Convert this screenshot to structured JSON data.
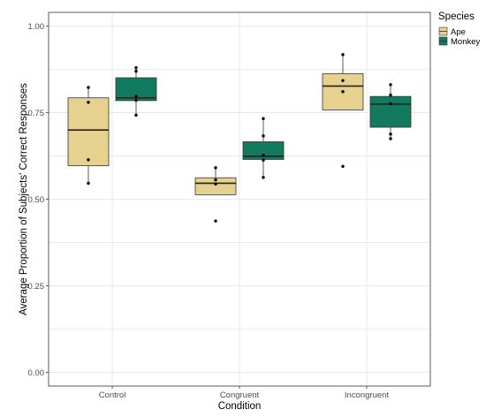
{
  "chart_data": {
    "type": "box",
    "xlabel": "Condition",
    "ylabel": "Average Proportion of Subjects' Correct Responses",
    "ylim": [
      -0.04,
      1.04
    ],
    "y_ticks": [
      0.0,
      0.25,
      0.5,
      0.75,
      1.0
    ],
    "y_tick_labels": [
      "0.00",
      "0.25",
      "0.50",
      "0.75",
      "1.00"
    ],
    "categories": [
      "Control",
      "Congruent",
      "Incongruent"
    ],
    "grid": true,
    "legend": {
      "title": "Species",
      "placement": "top-right"
    },
    "series": [
      {
        "name": "Ape",
        "color": "#e7d190",
        "boxes": [
          {
            "q1": 0.597,
            "median": 0.7,
            "q3": 0.793,
            "whisker_low": 0.546,
            "whisker_high": 0.823,
            "points": [
              0.823,
              0.78,
              0.614,
              0.546
            ]
          },
          {
            "q1": 0.513,
            "median": 0.546,
            "q3": 0.562,
            "whisker_low": 0.513,
            "whisker_high": 0.591,
            "points": [
              0.591,
              0.556,
              0.544,
              0.437
            ]
          },
          {
            "q1": 0.758,
            "median": 0.827,
            "q3": 0.863,
            "whisker_low": 0.758,
            "whisker_high": 0.918,
            "points": [
              0.918,
              0.843,
              0.811,
              0.595
            ]
          }
        ]
      },
      {
        "name": "Monkey",
        "color": "#127a5f",
        "boxes": [
          {
            "q1": 0.785,
            "median": 0.793,
            "q3": 0.851,
            "whisker_low": 0.743,
            "whisker_high": 0.88,
            "points": [
              0.88,
              0.87,
              0.797,
              0.786,
              0.743
            ]
          },
          {
            "q1": 0.615,
            "median": 0.624,
            "q3": 0.666,
            "whisker_low": 0.563,
            "whisker_high": 0.733,
            "points": [
              0.733,
              0.683,
              0.627,
              0.613,
              0.563
            ]
          },
          {
            "q1": 0.708,
            "median": 0.775,
            "q3": 0.797,
            "whisker_low": 0.675,
            "whisker_high": 0.831,
            "points": [
              0.831,
              0.801,
              0.776,
              0.688,
              0.675
            ]
          }
        ]
      }
    ]
  }
}
